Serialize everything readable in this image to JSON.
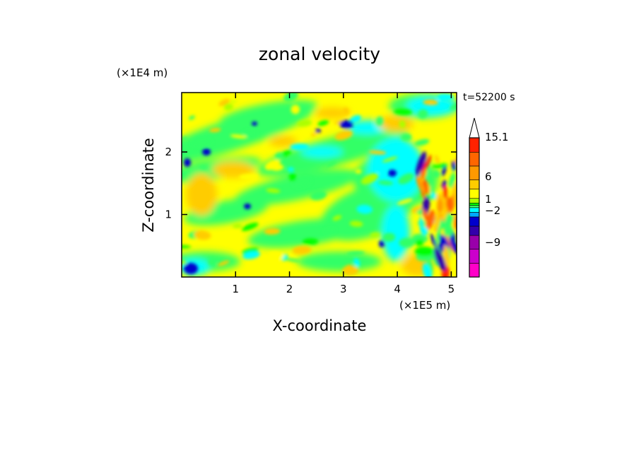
{
  "chart_data": {
    "type": "heatmap",
    "title": "zonal velocity",
    "xlabel": "X-coordinate",
    "ylabel": "Z-coordinate",
    "x_multiplier": "(×1E5 m)",
    "y_multiplier": "(×1E4 m)",
    "time_label": "t=52200 s",
    "xlim": [
      0,
      5.1
    ],
    "ylim": [
      0,
      2.95
    ],
    "x_ticks": [
      1,
      2,
      3,
      4,
      5
    ],
    "x_tick_labels": [
      "1",
      "2",
      "3",
      "4",
      "5"
    ],
    "y_ticks": [
      1,
      2
    ],
    "y_tick_labels": [
      "1",
      "2"
    ],
    "colorbar": {
      "labels": [
        {
          "value": 15.1,
          "text": "15.1"
        },
        {
          "value": 6,
          "text": "6"
        },
        {
          "value": 1,
          "text": "1"
        },
        {
          "value": -2,
          "text": "−2"
        },
        {
          "value": -9,
          "text": "−9"
        }
      ],
      "levels": [
        -15,
        -12,
        -9,
        -6,
        -4,
        -2,
        -1,
        0,
        0.5,
        1,
        2,
        4,
        6,
        9,
        12,
        15.1
      ],
      "colors": [
        "#ff00c8",
        "#cc00cc",
        "#9900aa",
        "#3300aa",
        "#0000cc",
        "#00aaff",
        "#00ffff",
        "#33ff66",
        "#00ff00",
        "#aaff00",
        "#ffff00",
        "#ffcc00",
        "#ff9900",
        "#ff6600",
        "#ff2200",
        "#ff8888",
        "#ffcccc"
      ]
    }
  }
}
